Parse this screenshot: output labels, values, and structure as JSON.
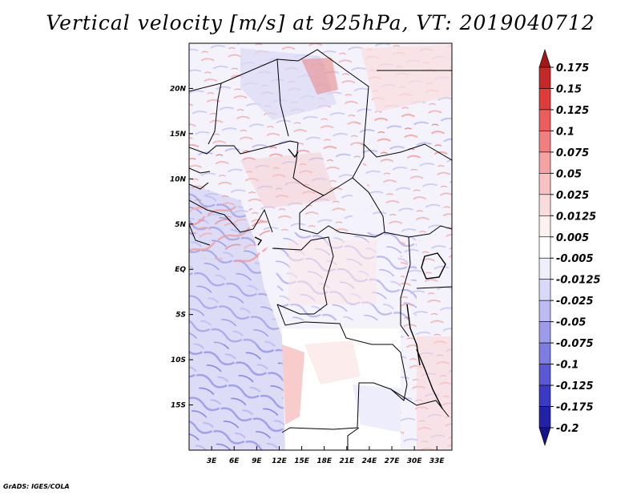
{
  "title": "Vertical velocity [m/s] at 925hPa, VT: 2019040712",
  "credit": "GrADS: IGES/COLA",
  "map": {
    "lon_range": [
      0,
      35
    ],
    "lat_range": [
      -20,
      25
    ],
    "x_ticks": [
      {
        "label": "3E",
        "value": 3
      },
      {
        "label": "6E",
        "value": 6
      },
      {
        "label": "9E",
        "value": 9
      },
      {
        "label": "12E",
        "value": 12
      },
      {
        "label": "15E",
        "value": 15
      },
      {
        "label": "18E",
        "value": 18
      },
      {
        "label": "21E",
        "value": 21
      },
      {
        "label": "24E",
        "value": 24
      },
      {
        "label": "27E",
        "value": 27
      },
      {
        "label": "30E",
        "value": 30
      },
      {
        "label": "33E",
        "value": 33
      }
    ],
    "y_ticks": [
      {
        "label": "20N",
        "value": 20
      },
      {
        "label": "15N",
        "value": 15
      },
      {
        "label": "10N",
        "value": 10
      },
      {
        "label": "5N",
        "value": 5
      },
      {
        "label": "EQ",
        "value": 0
      },
      {
        "label": "5S",
        "value": -5
      },
      {
        "label": "10S",
        "value": -10
      },
      {
        "label": "15S",
        "value": -15
      }
    ]
  },
  "colorbar": {
    "levels": [
      "0.175",
      "0.15",
      "0.125",
      "0.1",
      "0.075",
      "0.05",
      "0.025",
      "0.0125",
      "0.005",
      "-0.005",
      "-0.0125",
      "-0.025",
      "-0.05",
      "-0.075",
      "-0.1",
      "-0.125",
      "-0.175",
      "-0.2"
    ],
    "colors": [
      "#a01818",
      "#c52828",
      "#e03c3c",
      "#ec5e5e",
      "#f08080",
      "#f4a2a2",
      "#f8c2c2",
      "#fbdcdc",
      "#fdf0f0",
      "#ffffff",
      "#eeeefc",
      "#d8d8f8",
      "#bcbcf2",
      "#9c9cea",
      "#7c7ce2",
      "#5a5ad6",
      "#3a3ac4",
      "#2222a8",
      "#14148a"
    ]
  }
}
